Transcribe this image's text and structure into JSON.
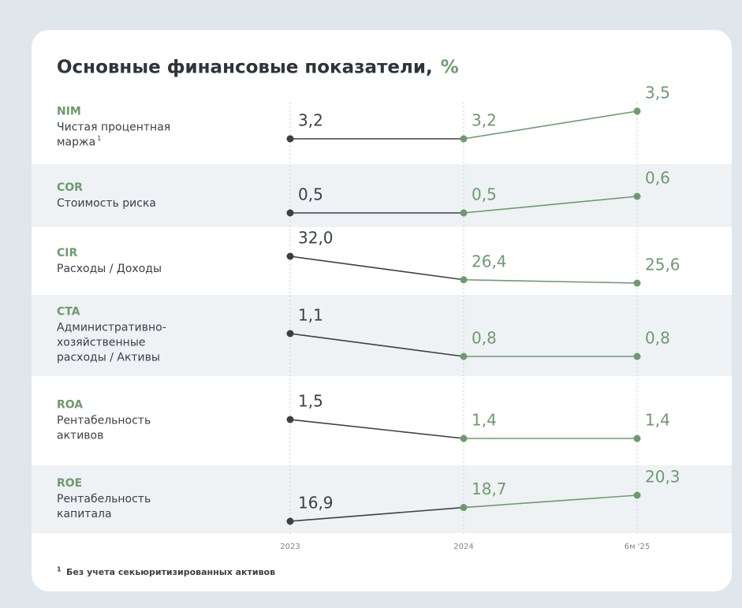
{
  "title": "Основные финансовые показатели,",
  "unit": "%",
  "x_axis": {
    "categories": [
      "2023",
      "2024",
      "6м '25"
    ]
  },
  "chart_data": [
    {
      "type": "line",
      "code": "NIM",
      "subtitle": [
        "Чистая процентная",
        "маржа"
      ],
      "footnote_ref": "1",
      "values": [
        3.2,
        3.2,
        3.5
      ],
      "value_labels": [
        "3,2",
        "3,2",
        "3,5"
      ],
      "colors": [
        "#3b4048",
        "#6f9a6f"
      ]
    },
    {
      "type": "line",
      "code": "COR",
      "subtitle": [
        "Стоимость риска"
      ],
      "values": [
        0.5,
        0.5,
        0.6
      ],
      "value_labels": [
        "0,5",
        "0,5",
        "0,6"
      ],
      "colors": [
        "#3b4048",
        "#6f9a6f"
      ]
    },
    {
      "type": "line",
      "code": "CIR",
      "subtitle": [
        "Расходы / Доходы"
      ],
      "values": [
        32.0,
        26.4,
        25.6
      ],
      "value_labels": [
        "32,0",
        "26,4",
        "25,6"
      ],
      "colors": [
        "#3b4048",
        "#6f9a6f"
      ]
    },
    {
      "type": "line",
      "code": "CTA",
      "subtitle": [
        "Административно-",
        "хозяйственные",
        "расходы / Активы"
      ],
      "values": [
        1.1,
        0.8,
        0.8
      ],
      "value_labels": [
        "1,1",
        "0,8",
        "0,8"
      ],
      "colors": [
        "#3b4048",
        "#6f9a6f"
      ]
    },
    {
      "type": "line",
      "code": "ROA",
      "subtitle": [
        "Рентабельность",
        "активов"
      ],
      "values": [
        1.5,
        1.4,
        1.4
      ],
      "value_labels": [
        "1,5",
        "1,4",
        "1,4"
      ],
      "colors": [
        "#3b4048",
        "#6f9a6f"
      ]
    },
    {
      "type": "line",
      "code": "ROE",
      "subtitle": [
        "Рентабельность",
        "капитала"
      ],
      "values": [
        16.9,
        18.7,
        20.3
      ],
      "value_labels": [
        "16,9",
        "18,7",
        "20,3"
      ],
      "colors": [
        "#3b4048",
        "#6f9a6f"
      ]
    }
  ],
  "footnote": {
    "mark": "1",
    "text": "Без учета секьюритизированных активов"
  }
}
